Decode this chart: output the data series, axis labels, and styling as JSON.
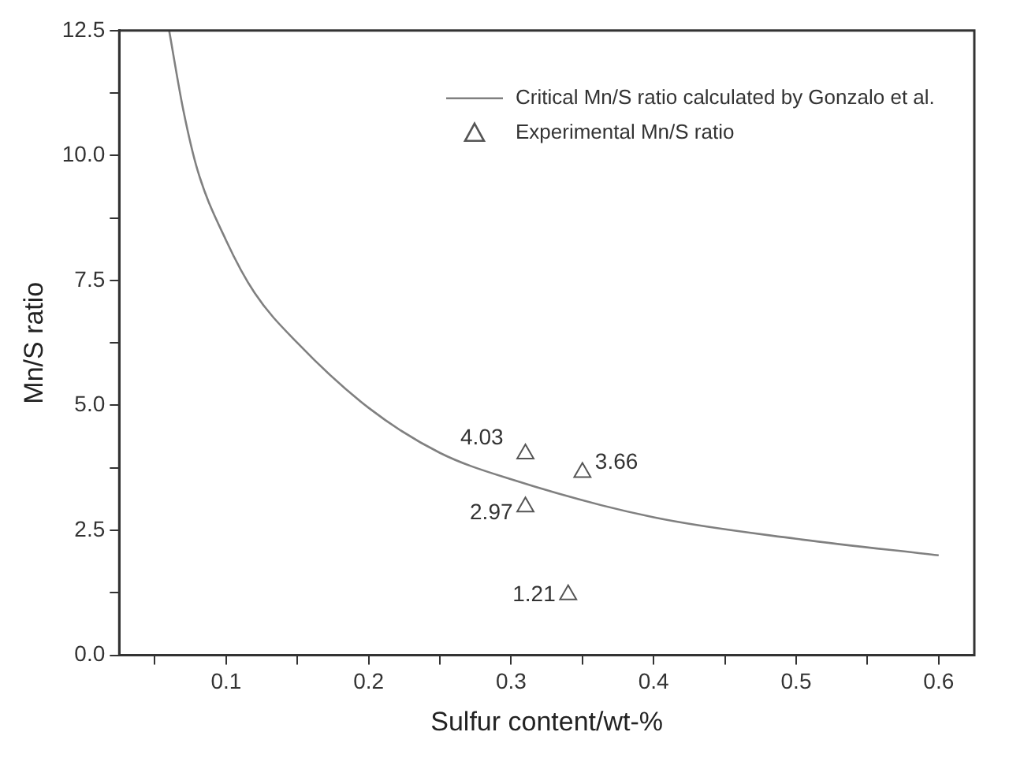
{
  "chart_data": {
    "type": "scatter",
    "xlabel": "Sulfur content/wt-%",
    "ylabel": "Mn/S ratio",
    "xlim": [
      0.025,
      0.625
    ],
    "xticks": [
      {
        "value": 0.05,
        "label": null
      },
      0.1,
      {
        "value": 0.15,
        "label": null
      },
      0.2,
      {
        "value": 0.25,
        "label": null
      },
      0.3,
      {
        "value": 0.35,
        "label": null
      },
      0.4,
      {
        "value": 0.45,
        "label": null
      },
      0.5,
      {
        "value": 0.55,
        "label": null
      },
      0.6
    ],
    "ylim": [
      0,
      12.5
    ],
    "yticks": [
      {
        "value": 0,
        "label": "0.0"
      },
      {
        "value": 1.25,
        "label": null
      },
      2.5,
      {
        "value": 3.75,
        "label": null
      },
      {
        "value": 5,
        "label": "5.0"
      },
      {
        "value": 6.25,
        "label": null
      },
      7.5,
      {
        "value": 8.75,
        "label": null
      },
      {
        "value": 10,
        "label": "10.0"
      },
      {
        "value": 11.25,
        "label": null
      },
      12.5
    ],
    "grid": false,
    "legend": "top right",
    "series": [
      {
        "name": "Critical Mn/S ratio calculated by Gonzalo et al.",
        "type": "line",
        "color": "#808080",
        "marker": "none",
        "line_style": "solid",
        "x": [
          0.06,
          0.07,
          0.08,
          0.1,
          0.12,
          0.15,
          0.2,
          0.25,
          0.3,
          0.4,
          0.5,
          0.6
        ],
        "values": [
          12.5,
          10.9,
          9.7,
          8.3,
          7.25,
          6.25,
          4.95,
          4.05,
          3.52,
          2.76,
          2.33,
          2.0
        ]
      },
      {
        "name": "Experimental Mn/S ratio",
        "color": "#555555",
        "marker": "triangle",
        "x": [
          0.31,
          0.35,
          0.31,
          0.34
        ],
        "values": [
          4.03,
          3.66,
          2.97,
          1.21
        ],
        "data_labels": true
      }
    ]
  }
}
